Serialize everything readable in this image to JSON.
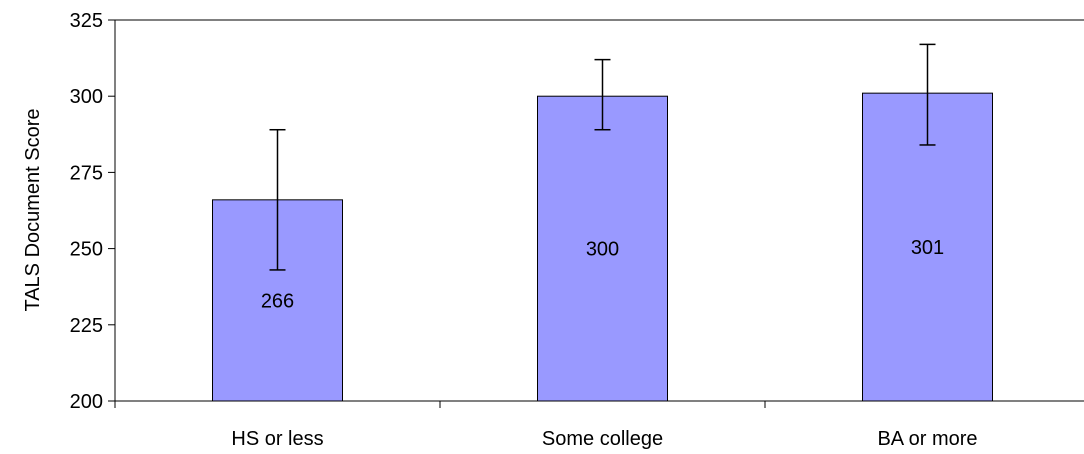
{
  "chart_data": {
    "type": "bar",
    "title": "",
    "xlabel": "",
    "ylabel": "TALS Document Score",
    "ylim": [
      200,
      325
    ],
    "yticks": [
      200,
      225,
      250,
      275,
      300,
      325
    ],
    "grid": false,
    "categories": [
      "HS or less",
      "Some college",
      "BA or more"
    ],
    "values": [
      266,
      300,
      301
    ],
    "data_labels": [
      "266",
      "300",
      "301"
    ],
    "error_low": [
      243,
      289,
      284
    ],
    "error_high": [
      289,
      312,
      317
    ],
    "bar_color": "#9999ff",
    "bar_edge_color": "#000000"
  }
}
